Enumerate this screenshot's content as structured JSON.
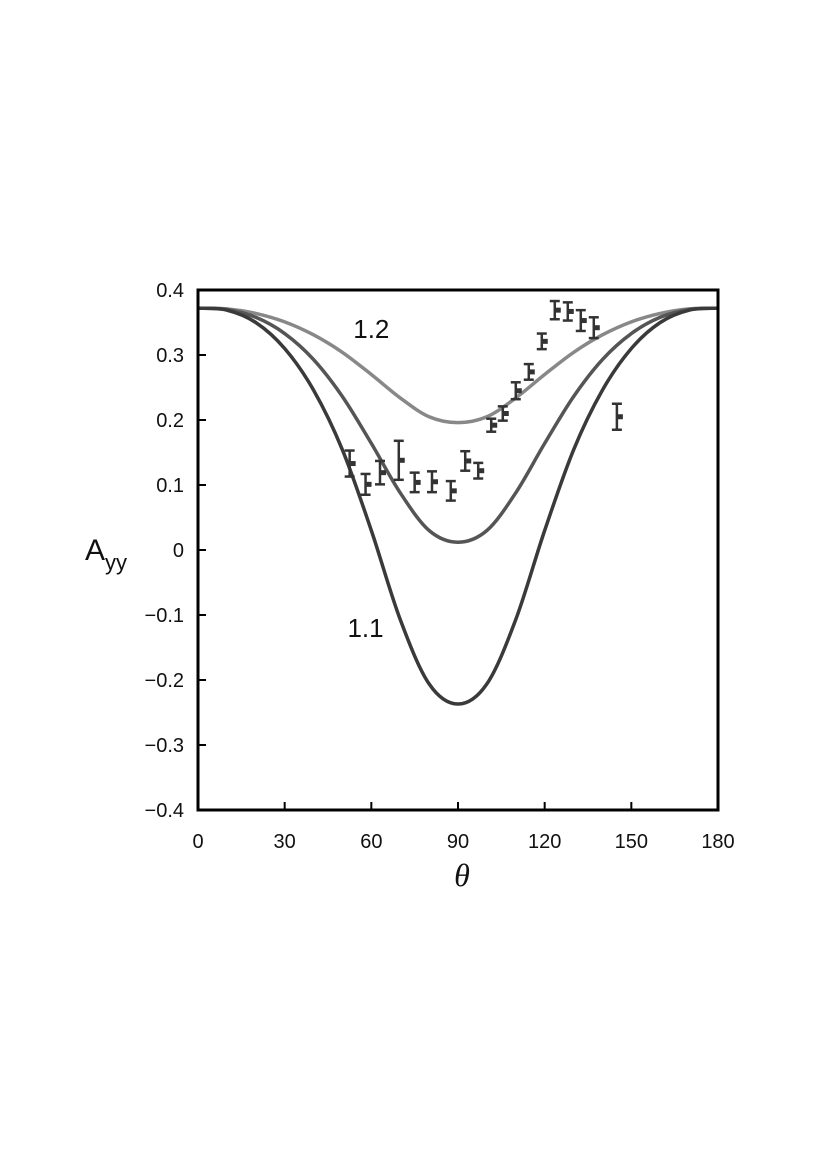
{
  "chart_data": {
    "type": "line",
    "title": "",
    "xlabel": "θ",
    "ylabel": "A",
    "ylabel_subscript": "yy",
    "xlim": [
      0,
      180
    ],
    "ylim": [
      -0.4,
      0.4
    ],
    "x_ticks": [
      0,
      30,
      60,
      90,
      120,
      150,
      180
    ],
    "x_tick_labels": [
      "0",
      "30",
      "60",
      "90",
      "120",
      "150",
      "180"
    ],
    "y_ticks": [
      0.4,
      0.3,
      0.2,
      0.1,
      0,
      -0.1,
      -0.2,
      -0.3,
      -0.4
    ],
    "y_tick_labels": [
      "0.4",
      "0.3",
      "0.2",
      "0.1",
      "0",
      "−0.1",
      "−0.2",
      "−0.3",
      "−0.4"
    ],
    "grid": false,
    "series": [
      {
        "label": "1.2",
        "color": "#888888",
        "x": [
          0,
          10,
          20,
          30,
          40,
          50,
          60,
          70,
          80,
          90,
          100,
          110,
          120,
          130,
          140,
          150,
          160,
          170,
          180
        ],
        "y": [
          0.372,
          0.371,
          0.364,
          0.351,
          0.331,
          0.304,
          0.27,
          0.234,
          0.205,
          0.196,
          0.205,
          0.234,
          0.27,
          0.304,
          0.331,
          0.351,
          0.364,
          0.371,
          0.372
        ]
      },
      {
        "label": "",
        "color": "#555555",
        "x": [
          0,
          10,
          20,
          30,
          40,
          50,
          60,
          70,
          80,
          90,
          100,
          110,
          120,
          130,
          140,
          150,
          160,
          170,
          180
        ],
        "y": [
          0.372,
          0.37,
          0.358,
          0.333,
          0.293,
          0.236,
          0.164,
          0.088,
          0.03,
          0.012,
          0.03,
          0.088,
          0.164,
          0.236,
          0.293,
          0.333,
          0.358,
          0.37,
          0.372
        ]
      },
      {
        "label": "1.1",
        "color": "#3a3a3a",
        "x": [
          0,
          10,
          20,
          30,
          40,
          50,
          60,
          70,
          80,
          90,
          100,
          110,
          120,
          130,
          140,
          150,
          160,
          170,
          180
        ],
        "y": [
          0.372,
          0.369,
          0.35,
          0.31,
          0.246,
          0.154,
          0.03,
          -0.107,
          -0.206,
          -0.237,
          -0.206,
          -0.107,
          0.03,
          0.154,
          0.246,
          0.31,
          0.35,
          0.369,
          0.372
        ]
      }
    ],
    "data_points": [
      {
        "x": 52.5,
        "y": 0.133,
        "err": 0.02
      },
      {
        "x": 58.0,
        "y": 0.101,
        "err": 0.016
      },
      {
        "x": 63.0,
        "y": 0.119,
        "err": 0.018
      },
      {
        "x": 69.5,
        "y": 0.138,
        "err": 0.03
      },
      {
        "x": 75.0,
        "y": 0.104,
        "err": 0.015
      },
      {
        "x": 81.0,
        "y": 0.105,
        "err": 0.016
      },
      {
        "x": 87.5,
        "y": 0.091,
        "err": 0.015
      },
      {
        "x": 92.5,
        "y": 0.137,
        "err": 0.015
      },
      {
        "x": 97.0,
        "y": 0.122,
        "err": 0.012
      },
      {
        "x": 101.5,
        "y": 0.192,
        "err": 0.01
      },
      {
        "x": 105.5,
        "y": 0.21,
        "err": 0.011
      },
      {
        "x": 110.0,
        "y": 0.245,
        "err": 0.013
      },
      {
        "x": 114.5,
        "y": 0.274,
        "err": 0.012
      },
      {
        "x": 119.0,
        "y": 0.321,
        "err": 0.012
      },
      {
        "x": 123.5,
        "y": 0.369,
        "err": 0.014
      },
      {
        "x": 128.0,
        "y": 0.367,
        "err": 0.014
      },
      {
        "x": 132.5,
        "y": 0.353,
        "err": 0.016
      },
      {
        "x": 137.0,
        "y": 0.342,
        "err": 0.016
      },
      {
        "x": 145.0,
        "y": 0.205,
        "err": 0.02
      }
    ],
    "curve_labels": [
      {
        "text": "1.2",
        "x": 60,
        "y": 0.34
      },
      {
        "text": "1.1",
        "x": 58,
        "y": -0.12
      }
    ]
  }
}
